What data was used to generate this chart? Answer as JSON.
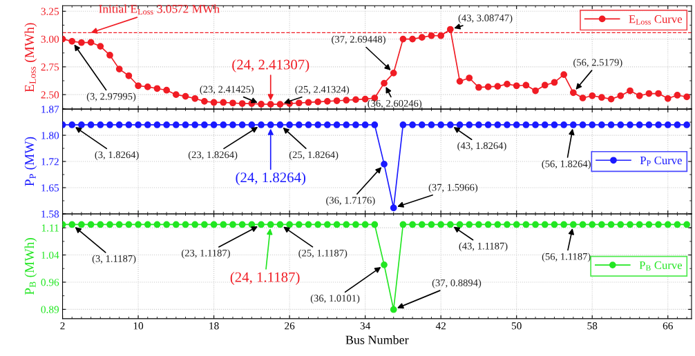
{
  "chart_data": [
    {
      "type": "line",
      "ylabel": "E$_{Loss}$ (MWh)",
      "marker": "circle",
      "line_style": "solid",
      "grid": true,
      "legend": "top right",
      "tick_labels": "y",
      "x": [
        2,
        3,
        4,
        5,
        6,
        7,
        8,
        9,
        10,
        11,
        12,
        13,
        14,
        15,
        16,
        17,
        18,
        19,
        20,
        21,
        22,
        23,
        24,
        25,
        26,
        27,
        28,
        29,
        30,
        31,
        32,
        33,
        34,
        35,
        36,
        37,
        38,
        39,
        40,
        41,
        42,
        43,
        44,
        45,
        46,
        47,
        48,
        49,
        50,
        51,
        52,
        53,
        54,
        55,
        56,
        57,
        58,
        59,
        60,
        61,
        62,
        63,
        64,
        65,
        66,
        67,
        68
      ],
      "xlim": [
        2,
        68.5
      ],
      "series": [
        {
          "name": "E$_{Loss}$ Curve",
          "color": "#f01c24",
          "values": [
            3.0,
            2.97995,
            2.968,
            2.97,
            2.935,
            2.855,
            2.73,
            2.67,
            2.58,
            2.57,
            2.555,
            2.54,
            2.5,
            2.485,
            2.465,
            2.44,
            2.43,
            2.43,
            2.425,
            2.42,
            2.42,
            2.41425,
            2.41307,
            2.41324,
            2.42,
            2.425,
            2.43,
            2.435,
            2.44,
            2.445,
            2.45,
            2.455,
            2.46,
            2.47,
            2.60246,
            2.69448,
            3.0,
            3.0,
            3.015,
            3.03,
            3.03,
            3.08747,
            2.62,
            2.65,
            2.565,
            2.57,
            2.575,
            2.595,
            2.58,
            2.585,
            2.535,
            2.585,
            2.61,
            2.68,
            2.5179,
            2.47,
            2.49,
            2.475,
            2.46,
            2.49,
            2.535,
            2.49,
            2.51,
            2.51,
            2.465,
            2.495,
            2.48
          ]
        }
      ],
      "ylim": [
        2.37,
        3.3
      ],
      "yticks": [
        {
          "value": 2.5,
          "label": "2.50"
        },
        {
          "value": 2.75,
          "label": "2.75"
        },
        {
          "value": 3.0,
          "label": "3.00"
        },
        {
          "value": 3.25,
          "label": "3.25"
        }
      ],
      "ref_lines": [
        {
          "axis": "y",
          "value": 3.0572,
          "label": "Initial E$_{Loss}$ 3.0572 MWh",
          "color": "#f01c24",
          "line_style": "dashed"
        }
      ],
      "annotations": [
        {
          "text": "(3, 2.97995)",
          "x": 3,
          "y": 2.97995
        },
        {
          "text": "(23, 2.41425)",
          "x": 23,
          "y": 2.41425
        },
        {
          "text": "(24, 2.41307)",
          "x": 24,
          "y": 2.41307
        },
        {
          "text": "(25, 2.41324)",
          "x": 25,
          "y": 2.41324
        },
        {
          "text": "(36, 2.60246)",
          "x": 36,
          "y": 2.60246
        },
        {
          "text": "(37, 2.69448)",
          "x": 37,
          "y": 2.69448
        },
        {
          "text": "(43, 3.08747)",
          "x": 43,
          "y": 3.08747
        },
        {
          "text": "(56, 2.5179)",
          "x": 56,
          "y": 2.5179
        }
      ]
    },
    {
      "type": "line",
      "ylabel": "P$_{P}$ (MW)",
      "marker": "circle",
      "line_style": "solid",
      "grid": true,
      "legend": "right",
      "tick_labels": "y",
      "x": [
        2,
        3,
        4,
        5,
        6,
        7,
        8,
        9,
        10,
        11,
        12,
        13,
        14,
        15,
        16,
        17,
        18,
        19,
        20,
        21,
        22,
        23,
        24,
        25,
        26,
        27,
        28,
        29,
        30,
        31,
        32,
        33,
        34,
        35,
        36,
        37,
        38,
        39,
        40,
        41,
        42,
        43,
        44,
        45,
        46,
        47,
        48,
        49,
        50,
        51,
        52,
        53,
        54,
        55,
        56,
        57,
        58,
        59,
        60,
        61,
        62,
        63,
        64,
        65,
        66,
        67,
        68
      ],
      "xlim": [
        2,
        68.5
      ],
      "series": [
        {
          "name": "P$_{P}$ Curve",
          "color": "#1a1aff",
          "values": [
            1.8264,
            1.8264,
            1.8264,
            1.8264,
            1.8264,
            1.8264,
            1.8264,
            1.8264,
            1.8264,
            1.8264,
            1.8264,
            1.8264,
            1.8264,
            1.8264,
            1.8264,
            1.8264,
            1.8264,
            1.8264,
            1.8264,
            1.8264,
            1.8264,
            1.8264,
            1.8264,
            1.8264,
            1.8264,
            1.8264,
            1.8264,
            1.8264,
            1.8264,
            1.8264,
            1.8264,
            1.8264,
            1.8264,
            1.8264,
            1.7176,
            1.5966,
            1.8264,
            1.8264,
            1.8264,
            1.8264,
            1.8264,
            1.8264,
            1.8264,
            1.8264,
            1.8264,
            1.8264,
            1.8264,
            1.8264,
            1.8264,
            1.8264,
            1.8264,
            1.8264,
            1.8264,
            1.8264,
            1.8264,
            1.8264,
            1.8264,
            1.8264,
            1.8264,
            1.8264,
            1.8264,
            1.8264,
            1.8264,
            1.8264,
            1.8264,
            1.8264,
            1.8264
          ]
        }
      ],
      "ylim": [
        1.58,
        1.87
      ],
      "yticks": [
        1.58,
        {
          "value": 1.6525,
          "label": "1.65"
        },
        {
          "value": 1.725,
          "label": "1.72"
        },
        {
          "value": 1.7975,
          "label": "1.80"
        },
        1.87
      ],
      "annotations": [
        {
          "text": "(3, 1.8264)",
          "x": 3,
          "y": 1.8264
        },
        {
          "text": "(23, 1.8264)",
          "x": 23,
          "y": 1.8264
        },
        {
          "text": "(24, 1.8264)",
          "x": 24,
          "y": 1.8264
        },
        {
          "text": "(25, 1.8264)",
          "x": 25,
          "y": 1.8264
        },
        {
          "text": "(36, 1.7176)",
          "x": 36,
          "y": 1.7176
        },
        {
          "text": "(37, 1.5966)",
          "x": 37,
          "y": 1.5966
        },
        {
          "text": "(43, 1.8264)",
          "x": 43,
          "y": 1.8264
        },
        {
          "text": "(56, 1.8264)",
          "x": 56,
          "y": 1.8264
        }
      ]
    },
    {
      "type": "line",
      "ylabel": "P$_{B}$ (MWh)",
      "xlabel": "Bus Number",
      "marker": "circle",
      "line_style": "solid",
      "grid": true,
      "legend": "right",
      "x": [
        2,
        3,
        4,
        5,
        6,
        7,
        8,
        9,
        10,
        11,
        12,
        13,
        14,
        15,
        16,
        17,
        18,
        19,
        20,
        21,
        22,
        23,
        24,
        25,
        26,
        27,
        28,
        29,
        30,
        31,
        32,
        33,
        34,
        35,
        36,
        37,
        38,
        39,
        40,
        41,
        42,
        43,
        44,
        45,
        46,
        47,
        48,
        49,
        50,
        51,
        52,
        53,
        54,
        55,
        56,
        57,
        58,
        59,
        60,
        61,
        62,
        63,
        64,
        65,
        66,
        67,
        68
      ],
      "xlim": [
        2,
        68.5
      ],
      "xticks": [
        2,
        10,
        18,
        26,
        34,
        42,
        50,
        58,
        66
      ],
      "series": [
        {
          "name": "P$_{B}$ Curve",
          "color": "#22e622",
          "values": [
            1.1187,
            1.1187,
            1.1187,
            1.1187,
            1.1187,
            1.1187,
            1.1187,
            1.1187,
            1.1187,
            1.1187,
            1.1187,
            1.1187,
            1.1187,
            1.1187,
            1.1187,
            1.1187,
            1.1187,
            1.1187,
            1.1187,
            1.1187,
            1.1187,
            1.1187,
            1.1187,
            1.1187,
            1.1187,
            1.1187,
            1.1187,
            1.1187,
            1.1187,
            1.1187,
            1.1187,
            1.1187,
            1.1187,
            1.1187,
            1.0101,
            0.8894,
            1.1187,
            1.1187,
            1.1187,
            1.1187,
            1.1187,
            1.1187,
            1.1187,
            1.1187,
            1.1187,
            1.1187,
            1.1187,
            1.1187,
            1.1187,
            1.1187,
            1.1187,
            1.1187,
            1.1187,
            1.1187,
            1.1187,
            1.1187,
            1.1187,
            1.1187,
            1.1187,
            1.1187,
            1.1187,
            1.1187,
            1.1187,
            1.1187,
            1.1187,
            1.1187,
            1.1187
          ]
        }
      ],
      "ylim": [
        0.865,
        1.1475
      ],
      "yticks": [
        0.89,
        {
          "value": 0.9633,
          "label": "0.96"
        },
        {
          "value": 1.0367,
          "label": "1.04"
        },
        1.11
      ],
      "annotations": [
        {
          "text": "(3, 1.1187)",
          "x": 3,
          "y": 1.1187
        },
        {
          "text": "(23, 1.1187)",
          "x": 23,
          "y": 1.1187
        },
        {
          "text": "(24, 1.1187)",
          "x": 24,
          "y": 1.1187
        },
        {
          "text": "(25, 1.1187)",
          "x": 25,
          "y": 1.1187
        },
        {
          "text": "(36, 1.0101)",
          "x": 36,
          "y": 1.0101
        },
        {
          "text": "(37, 0.8894)",
          "x": 37,
          "y": 0.8894
        },
        {
          "text": "(43, 1.1187)",
          "x": 43,
          "y": 1.1187
        },
        {
          "text": "(56, 1.1187)",
          "x": 56,
          "y": 1.1187
        }
      ]
    }
  ]
}
